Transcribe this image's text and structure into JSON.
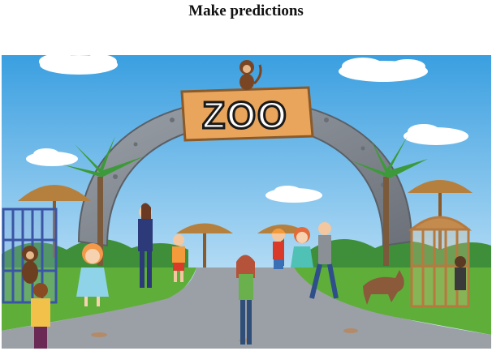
{
  "page": {
    "title": "Make predictions"
  },
  "scene": {
    "sign_text": "ZOO",
    "colors": {
      "sky_top": "#3a9fe0",
      "sky_bottom": "#d8eefb",
      "arch_stone": "#8a8f96",
      "sign_wood": "#e9a55b",
      "grass": "#5fae3a",
      "path": "#9aa0a6",
      "cage_blue": "#3a55a5",
      "cage_brown": "#b77a3e"
    }
  }
}
